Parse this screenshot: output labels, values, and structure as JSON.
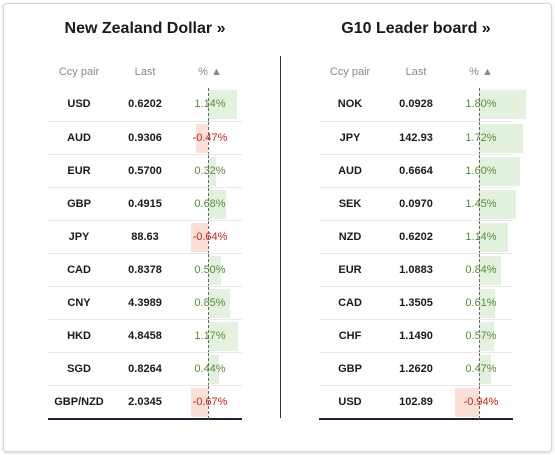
{
  "left": {
    "title": "New Zealand Dollar »",
    "headers": {
      "pair": "Ccy pair",
      "last": "Last",
      "pct": "% ▲"
    },
    "rows": [
      {
        "pair": "USD",
        "last": "0.6202",
        "pct": "1.14%",
        "value": 1.14
      },
      {
        "pair": "AUD",
        "last": "0.9306",
        "pct": "-0.47%",
        "value": -0.47
      },
      {
        "pair": "EUR",
        "last": "0.5700",
        "pct": "0.32%",
        "value": 0.32
      },
      {
        "pair": "GBP",
        "last": "0.4915",
        "pct": "0.68%",
        "value": 0.68
      },
      {
        "pair": "JPY",
        "last": "88.63",
        "pct": "-0.64%",
        "value": -0.64
      },
      {
        "pair": "CAD",
        "last": "0.8378",
        "pct": "0.50%",
        "value": 0.5
      },
      {
        "pair": "CNY",
        "last": "4.3989",
        "pct": "0.85%",
        "value": 0.85
      },
      {
        "pair": "HKD",
        "last": "4.8458",
        "pct": "1.17%",
        "value": 1.17
      },
      {
        "pair": "SGD",
        "last": "0.8264",
        "pct": "0.44%",
        "value": 0.44
      },
      {
        "pair": "GBP/NZD",
        "last": "2.0345",
        "pct": "-0.67%",
        "value": -0.67
      }
    ]
  },
  "right": {
    "title": "G10 Leader board »",
    "headers": {
      "pair": "Ccy pair",
      "last": "Last",
      "pct": "% ▲"
    },
    "rows": [
      {
        "pair": "NOK",
        "last": "0.0928",
        "pct": "1.80%",
        "value": 1.8
      },
      {
        "pair": "JPY",
        "last": "142.93",
        "pct": "1.72%",
        "value": 1.72
      },
      {
        "pair": "AUD",
        "last": "0.6664",
        "pct": "1.60%",
        "value": 1.6
      },
      {
        "pair": "SEK",
        "last": "0.0970",
        "pct": "1.45%",
        "value": 1.45
      },
      {
        "pair": "NZD",
        "last": "0.6202",
        "pct": "1.14%",
        "value": 1.14
      },
      {
        "pair": "EUR",
        "last": "1.0883",
        "pct": "0.84%",
        "value": 0.84
      },
      {
        "pair": "CAD",
        "last": "1.3505",
        "pct": "0.61%",
        "value": 0.61
      },
      {
        "pair": "CHF",
        "last": "1.1490",
        "pct": "0.57%",
        "value": 0.57
      },
      {
        "pair": "GBP",
        "last": "1.2620",
        "pct": "0.47%",
        "value": 0.47
      },
      {
        "pair": "USD",
        "last": "102.89",
        "pct": "-0.94%",
        "value": -0.94
      }
    ]
  },
  "colors": {
    "positive_bar": "#e3f2de",
    "negative_bar": "#fbe0d6",
    "positive_text": "#5a8a3a",
    "negative_text": "#d0201a"
  }
}
